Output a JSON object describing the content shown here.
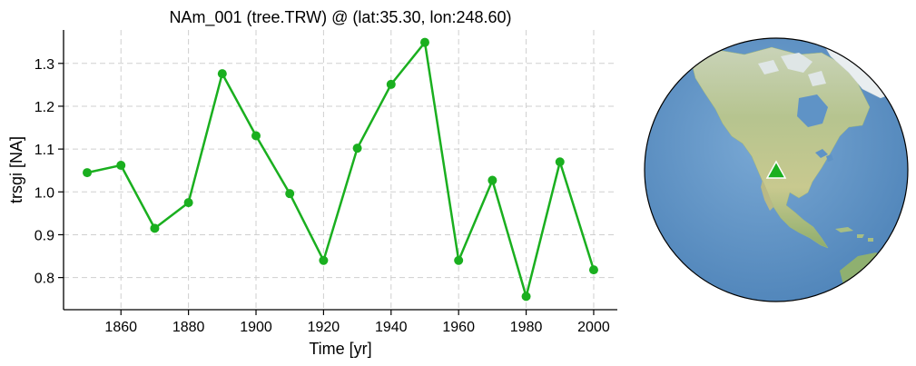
{
  "chart_data": {
    "type": "line",
    "title": "NAm_001 (tree.TRW) @ (lat:35.30, lon:248.60)",
    "xlabel": "Time [yr]",
    "ylabel": "trsgi [NA]",
    "x": [
      1850,
      1860,
      1870,
      1880,
      1890,
      1900,
      1910,
      1920,
      1930,
      1940,
      1950,
      1960,
      1970,
      1980,
      1990,
      2000
    ],
    "series": [
      {
        "values": [
          1.045,
          1.062,
          0.915,
          0.975,
          1.276,
          1.131,
          0.996,
          0.84,
          1.102,
          1.251,
          1.349,
          0.84,
          1.027,
          0.756,
          1.07,
          0.818
        ],
        "color": "#1aaf1f"
      }
    ],
    "xlim": [
      1843,
      2007
    ],
    "ylim": [
      0.725,
      1.378
    ],
    "xticks": [
      1860,
      1880,
      1900,
      1920,
      1940,
      1960,
      1980,
      2000
    ],
    "yticks": [
      0.8,
      0.9,
      1.0,
      1.1,
      1.2,
      1.3
    ],
    "yticklabels": [
      "0.8",
      "0.9",
      "1.0",
      "1.1",
      "1.2",
      "1.3"
    ],
    "grid": true,
    "grid_style": "dashed"
  },
  "map": {
    "projection": "orthographic",
    "center_lon": 248.6,
    "center_lat": 35.3,
    "marker": "triangle",
    "marker_color": "#1aaf1f",
    "ocean_color": "#5f93c6",
    "land_color": "#a7be83"
  }
}
